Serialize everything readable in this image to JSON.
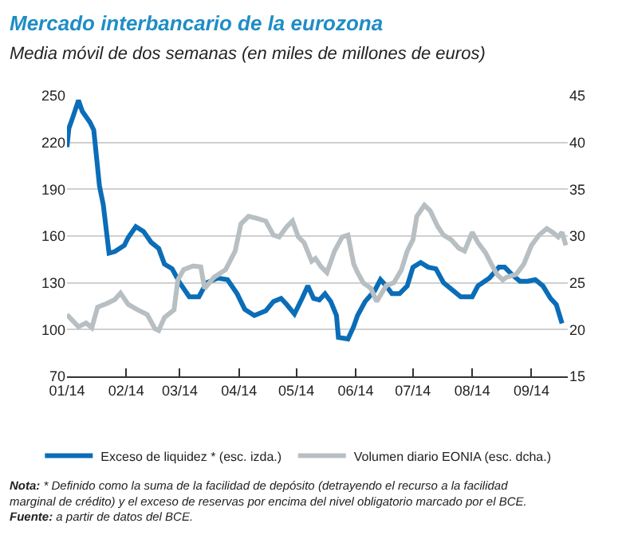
{
  "chart_data": {
    "type": "line",
    "title": "Mercado interbancario de la eurozona",
    "subtitle": "Media móvil de dos semanas (en miles de millones de euros)",
    "xlim": [
      "2014-01-01",
      "2014-09-20"
    ],
    "xticks": [
      {
        "value": "2014-01-01",
        "label": "01/14"
      },
      {
        "value": "2014-02-01",
        "label": "02/14"
      },
      {
        "value": "2014-03-01",
        "label": "03/14"
      },
      {
        "value": "2014-04-01",
        "label": "04/14"
      },
      {
        "value": "2014-05-01",
        "label": "05/14"
      },
      {
        "value": "2014-06-01",
        "label": "06/14"
      },
      {
        "value": "2014-07-01",
        "label": "07/14"
      },
      {
        "value": "2014-08-01",
        "label": "08/14"
      },
      {
        "value": "2014-09-01",
        "label": "09/14"
      }
    ],
    "ylim": [
      70,
      250
    ],
    "yticks": [
      70,
      100,
      130,
      160,
      190,
      220,
      250
    ],
    "y2lim": [
      15,
      45
    ],
    "y2ticks": [
      15,
      20,
      25,
      30,
      35,
      40,
      45
    ],
    "grid": "y",
    "legend": "bottom",
    "marker": "none",
    "line_style": "solid",
    "series": [
      {
        "name": "Exceso de liquidez * (esc. izda.)",
        "color": "#0b6db7",
        "x": [
          "2014-01-01",
          "2014-01-02",
          "2014-01-04",
          "2014-01-07",
          "2014-01-09",
          "2014-01-13",
          "2014-01-15",
          "2014-01-18",
          "2014-01-20",
          "2014-01-23",
          "2014-01-26",
          "2014-01-31",
          "2014-02-02",
          "2014-02-06",
          "2014-02-10",
          "2014-02-14",
          "2014-02-18",
          "2014-02-21",
          "2014-02-25",
          "2014-03-01",
          "2014-03-06",
          "2014-03-11",
          "2014-03-15",
          "2014-03-21",
          "2014-03-26",
          "2014-03-31",
          "2014-04-04",
          "2014-04-09",
          "2014-04-15",
          "2014-04-19",
          "2014-04-23",
          "2014-04-26",
          "2014-04-30",
          "2014-05-04",
          "2014-05-07",
          "2014-05-10",
          "2014-05-13",
          "2014-05-16",
          "2014-05-19",
          "2014-05-22",
          "2014-05-23",
          "2014-05-28",
          "2014-05-31",
          "2014-06-02",
          "2014-06-06",
          "2014-06-11",
          "2014-06-14",
          "2014-06-17",
          "2014-06-20",
          "2014-06-24",
          "2014-06-28",
          "2014-07-01",
          "2014-07-05",
          "2014-07-09",
          "2014-07-13",
          "2014-07-17",
          "2014-07-22",
          "2014-07-26",
          "2014-08-01",
          "2014-08-04",
          "2014-08-10",
          "2014-08-15",
          "2014-08-18",
          "2014-08-22",
          "2014-08-26",
          "2014-08-30",
          "2014-09-03",
          "2014-09-07",
          "2014-09-11",
          "2014-09-14",
          "2014-09-17"
        ],
        "values": [
          217,
          229,
          236,
          247,
          240,
          233,
          228,
          192,
          180,
          149,
          150,
          154,
          159,
          166,
          163,
          156,
          152,
          142,
          139,
          130,
          121,
          121,
          130,
          133,
          132,
          123,
          113,
          109,
          112,
          118,
          120,
          116,
          110,
          120,
          128,
          120,
          119,
          123,
          118,
          109,
          95,
          94,
          102,
          109,
          118,
          125,
          132,
          128,
          123,
          123,
          128,
          140,
          143,
          140,
          139,
          130,
          125,
          121,
          121,
          128,
          133,
          140,
          140,
          135,
          131,
          131,
          132,
          128,
          120,
          116,
          104
        ]
      },
      {
        "name": "Volumen diario EONIA (esc. dcha.)",
        "color": "#b8bfc3",
        "axis": "y2",
        "x": [
          "2014-01-01",
          "2014-01-07",
          "2014-01-11",
          "2014-01-14",
          "2014-01-17",
          "2014-01-22",
          "2014-01-26",
          "2014-01-29",
          "2014-02-02",
          "2014-02-07",
          "2014-02-12",
          "2014-02-16",
          "2014-02-18",
          "2014-02-21",
          "2014-02-26",
          "2014-02-28",
          "2014-03-03",
          "2014-03-08",
          "2014-03-12",
          "2014-03-14",
          "2014-03-19",
          "2014-03-25",
          "2014-03-30",
          "2014-04-02",
          "2014-04-06",
          "2014-04-10",
          "2014-04-15",
          "2014-04-19",
          "2014-04-22",
          "2014-04-26",
          "2014-04-29",
          "2014-05-02",
          "2014-05-05",
          "2014-05-09",
          "2014-05-11",
          "2014-05-14",
          "2014-05-17",
          "2014-05-21",
          "2014-05-25",
          "2014-05-28",
          "2014-05-31",
          "2014-06-02",
          "2014-06-05",
          "2014-06-09",
          "2014-06-12",
          "2014-06-17",
          "2014-06-21",
          "2014-06-25",
          "2014-06-28",
          "2014-07-01",
          "2014-07-03",
          "2014-07-07",
          "2014-07-10",
          "2014-07-14",
          "2014-07-17",
          "2014-07-21",
          "2014-07-25",
          "2014-07-28",
          "2014-08-01",
          "2014-08-04",
          "2014-08-08",
          "2014-08-11",
          "2014-08-14",
          "2014-08-17",
          "2014-08-19",
          "2014-08-24",
          "2014-08-28",
          "2014-09-01",
          "2014-09-05",
          "2014-09-09",
          "2014-09-12",
          "2014-09-15",
          "2014-09-17",
          "2014-09-19"
        ],
        "values": [
          21.6,
          20.3,
          20.7,
          20.2,
          22.4,
          22.8,
          23.2,
          23.9,
          22.7,
          22.1,
          21.6,
          20.1,
          19.9,
          21.3,
          22.1,
          25.3,
          26.4,
          26.8,
          26.7,
          24.4,
          25.6,
          26.4,
          28.4,
          31.3,
          32.1,
          31.9,
          31.6,
          30.1,
          29.9,
          31.0,
          31.6,
          29.9,
          29.3,
          27.3,
          27.6,
          26.7,
          26.1,
          28.4,
          29.9,
          30.1,
          27.0,
          26.1,
          25.0,
          24.4,
          23.0,
          24.7,
          25.0,
          26.4,
          28.4,
          29.6,
          32.1,
          33.3,
          32.7,
          31.0,
          30.1,
          29.6,
          28.7,
          28.4,
          30.4,
          29.3,
          28.2,
          27.0,
          25.9,
          25.3,
          25.6,
          25.9,
          27.0,
          29.0,
          30.1,
          30.8,
          30.4,
          29.9,
          30.4,
          29.0
        ]
      }
    ],
    "annotations": [
      "Nota: * Definido como la suma de la facilidad de depósito (detrayendo el recurso a la facilidad marginal de crédito) y el exceso de reservas por encima del nivel obligatorio marcado por el BCE.",
      "Fuente: a partir de datos del BCE."
    ]
  }
}
